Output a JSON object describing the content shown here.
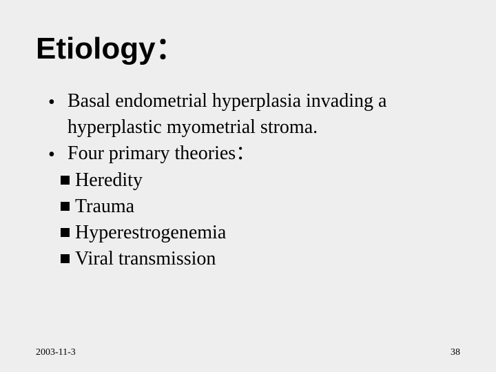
{
  "background_color": "#eeeeee",
  "text_color": "#000000",
  "title": {
    "text": "Etiology：",
    "font_family": "Arial",
    "font_weight": 900,
    "font_size_pt": 33
  },
  "body": {
    "font_family": "Times New Roman",
    "font_size_pt": 21,
    "bullets": [
      {
        "marker": "•",
        "text": "Basal endometrial hyperplasia invading a hyperplastic myometrial stroma."
      },
      {
        "marker": "•",
        "text": "Four primary theories："
      }
    ],
    "sub_bullets": [
      {
        "marker": "square",
        "marker_color": "#000000",
        "text": "Heredity"
      },
      {
        "marker": "square",
        "marker_color": "#000000",
        "text": "Trauma"
      },
      {
        "marker": "square",
        "marker_color": "#000000",
        "text": "Hyperestrogenemia"
      },
      {
        "marker": "square",
        "marker_color": "#000000",
        "text": "Viral transmission"
      }
    ]
  },
  "footer": {
    "date": "2003-11-3",
    "page_number": "38",
    "font_size_pt": 10.5
  }
}
